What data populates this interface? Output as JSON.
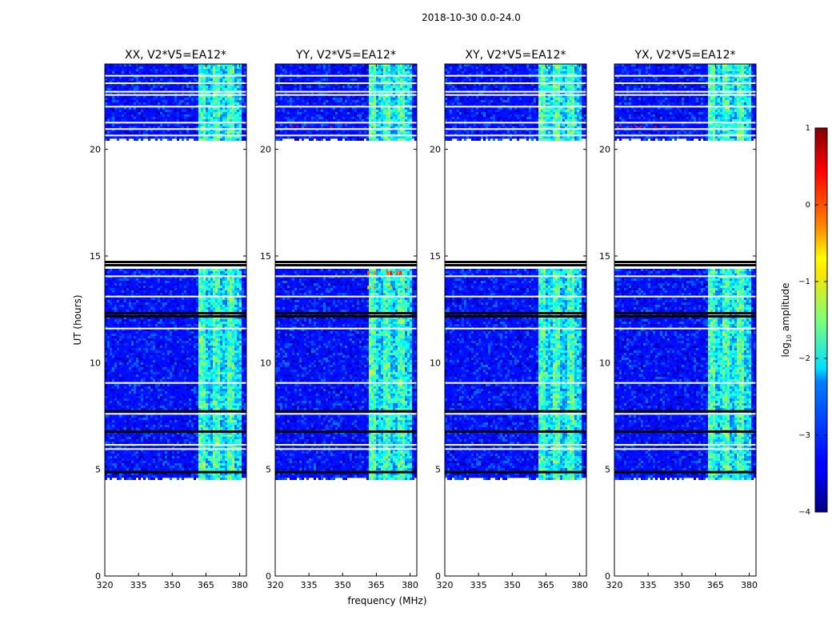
{
  "figure": {
    "suptitle": "2018-10-30 0.0-24.0",
    "xlabel": "frequency (MHz)",
    "ylabel": "UT (hours)"
  },
  "chart_data": {
    "type": "heatmap",
    "suptitle": "2018-10-30 0.0-24.0",
    "xlabel": "frequency (MHz)",
    "ylabel": "UT (hours)",
    "xlim": [
      320,
      383
    ],
    "ylim": [
      0,
      24
    ],
    "xticks": [
      320,
      335,
      350,
      365,
      380
    ],
    "yticks": [
      0,
      5,
      10,
      15,
      20
    ],
    "panels": [
      {
        "title": "XX, V2*V5=EA12*",
        "feature": "rfi-band"
      },
      {
        "title": "YY, V2*V5=EA12*",
        "feature": "rfi-band-strong"
      },
      {
        "title": "XY, V2*V5=EA12*",
        "feature": "rfi-band"
      },
      {
        "title": "YX, V2*V5=EA12*",
        "feature": "rfi-band"
      }
    ],
    "data_time_ranges": [
      [
        4.6,
        14.4
      ],
      [
        20.5,
        24.0
      ]
    ],
    "flagged_black_rows": [
      4.85,
      6.75,
      7.7,
      12.15,
      12.3,
      14.55,
      14.7
    ],
    "flagged_white_rows": [
      5.95,
      6.15,
      7.6,
      9.05,
      11.6,
      13.1,
      14.05,
      20.65,
      20.95,
      21.25,
      22.0,
      22.55,
      22.7,
      23.1,
      23.45
    ],
    "rfi_band_mhz": [
      361,
      380
    ],
    "background_log10_amplitude": -3.3,
    "rfi_log10_amplitude": -1.8,
    "colorbar": {
      "label": "log",
      "label_sub": "10",
      "label_rest": " amplitude",
      "vmin": -4,
      "vmax": 1,
      "ticks": [
        "1",
        "0",
        "−1",
        "−2",
        "−3",
        "−4"
      ],
      "colormap": "jet"
    }
  }
}
